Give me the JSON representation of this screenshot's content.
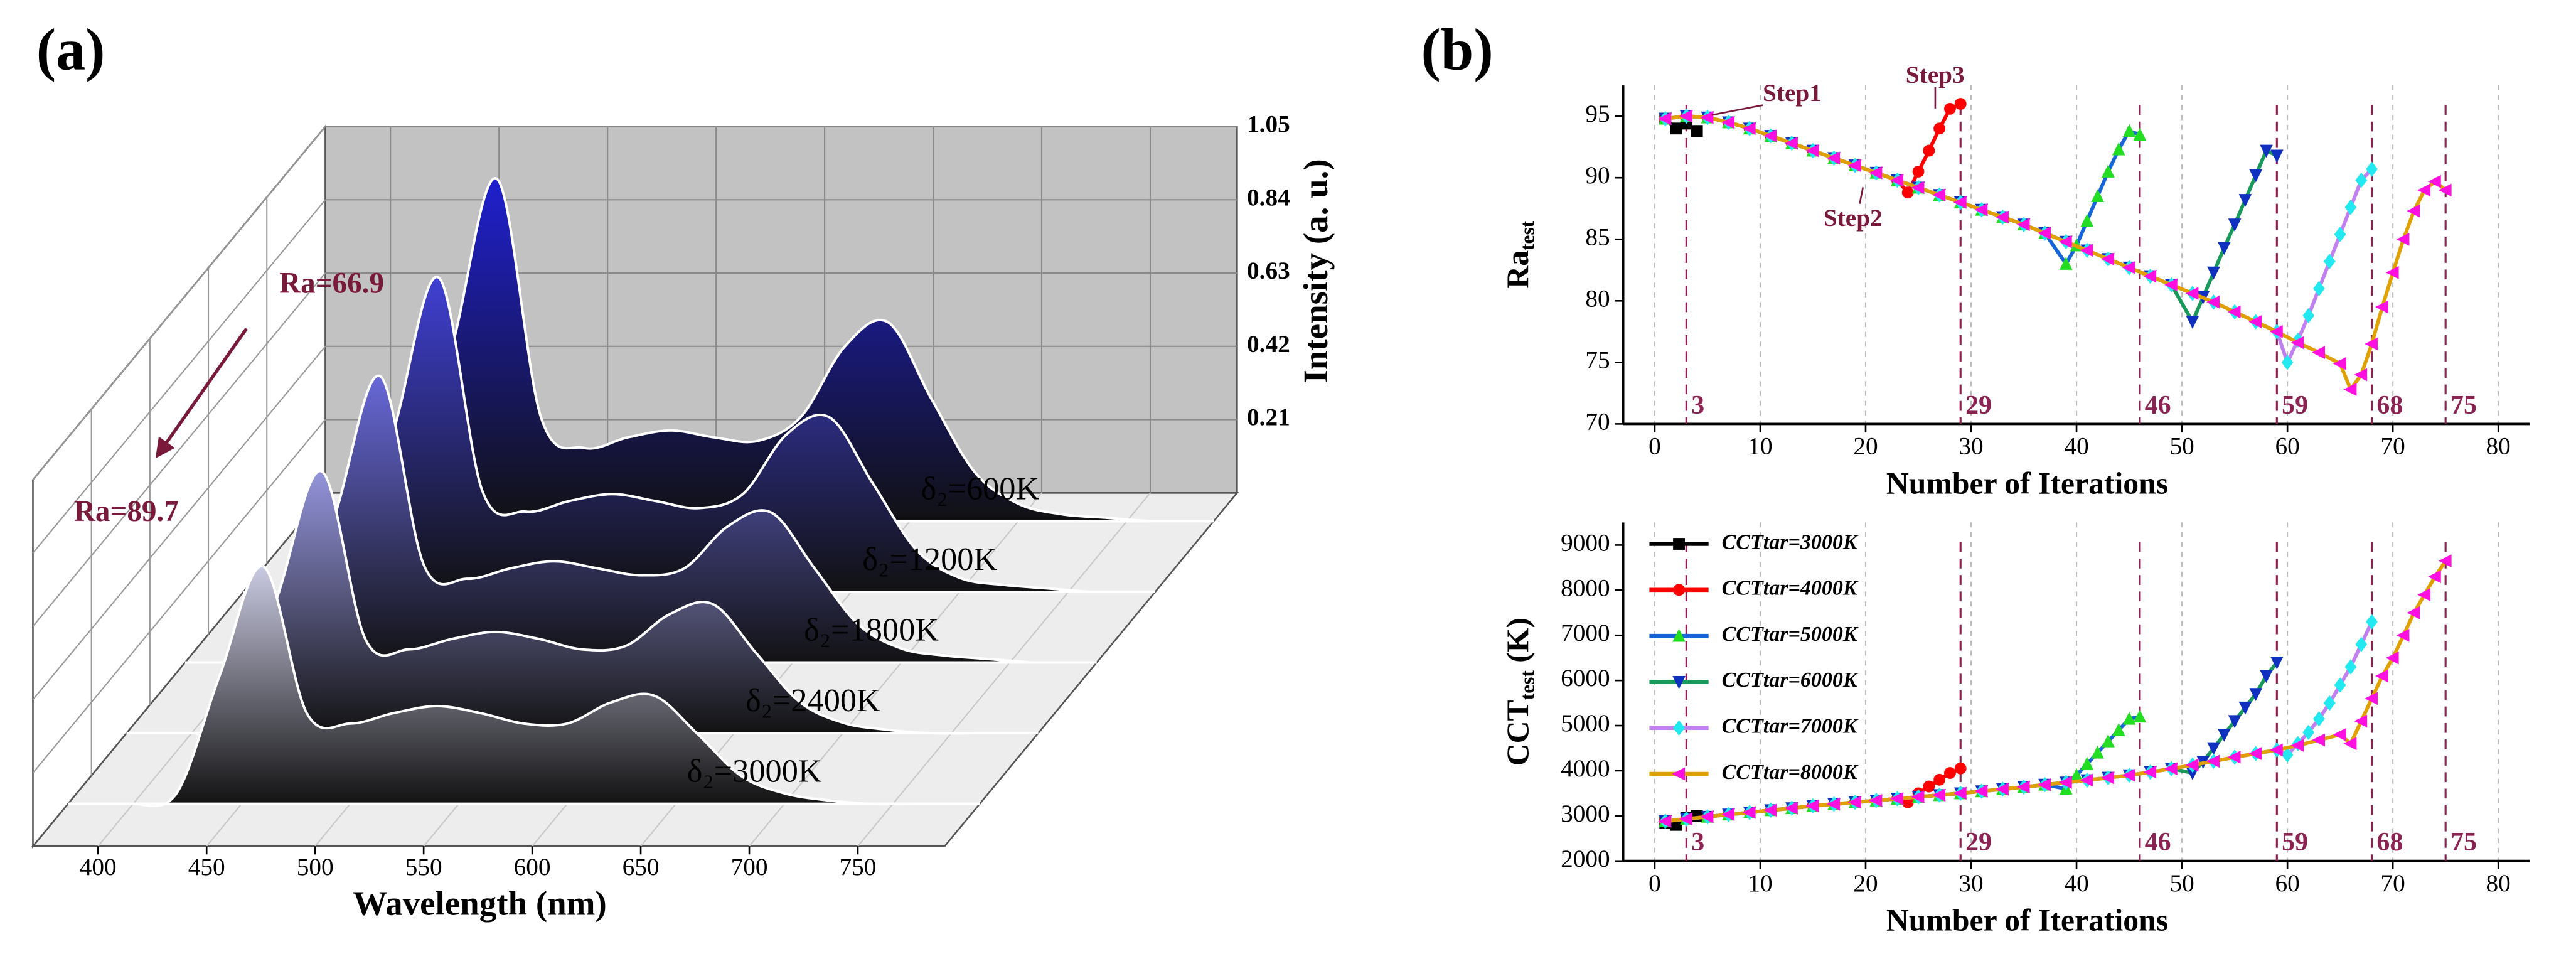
{
  "chart_data": [
    {
      "type": "waterfall",
      "title": "(a)",
      "xlabel": "Wavelength (nm)",
      "ylabel": "Intensity (a. u.)",
      "annotations": [
        "Ra=66.9",
        "Ra=89.7"
      ],
      "x": [
        400,
        420,
        440,
        460,
        480,
        500,
        520,
        540,
        560,
        580,
        600,
        620,
        640,
        660,
        680,
        700,
        720,
        740,
        760
      ],
      "xlim": [
        370,
        790
      ],
      "xticks": [
        400,
        450,
        500,
        550,
        600,
        650,
        700,
        750
      ],
      "ylim": [
        0,
        1.05
      ],
      "yticks": [
        0.21,
        0.42,
        0.63,
        0.84,
        1.05
      ],
      "series": [
        {
          "name": "δ₂=600K",
          "color": "#2020d0",
          "values": [
            0,
            0.04,
            0.52,
            0.98,
            0.3,
            0.21,
            0.24,
            0.26,
            0.24,
            0.23,
            0.3,
            0.5,
            0.57,
            0.35,
            0.14,
            0.05,
            0.02,
            0.01,
            0
          ]
        },
        {
          "name": "δ₂=1200K",
          "color": "#4040d4",
          "values": [
            0,
            0.04,
            0.48,
            0.9,
            0.29,
            0.23,
            0.26,
            0.28,
            0.26,
            0.24,
            0.28,
            0.45,
            0.5,
            0.31,
            0.12,
            0.04,
            0.02,
            0.01,
            0
          ]
        },
        {
          "name": "δ₂=1800K",
          "color": "#6868d8",
          "values": [
            0,
            0.03,
            0.44,
            0.82,
            0.28,
            0.24,
            0.27,
            0.29,
            0.27,
            0.25,
            0.27,
            0.39,
            0.43,
            0.27,
            0.11,
            0.04,
            0.02,
            0.01,
            0
          ]
        },
        {
          "name": "δ₂=2400K",
          "color": "#9494dc",
          "values": [
            0,
            0.03,
            0.4,
            0.75,
            0.27,
            0.24,
            0.27,
            0.29,
            0.27,
            0.24,
            0.25,
            0.34,
            0.37,
            0.23,
            0.09,
            0.03,
            0.01,
            0,
            0
          ]
        },
        {
          "name": "δ₂=3000K",
          "color": "#cacae2",
          "values": [
            0,
            0.03,
            0.37,
            0.68,
            0.26,
            0.23,
            0.26,
            0.28,
            0.26,
            0.23,
            0.23,
            0.29,
            0.31,
            0.2,
            0.08,
            0.03,
            0.01,
            0,
            0
          ]
        }
      ]
    },
    {
      "type": "line",
      "title": "(b)",
      "xlabel": "Number of Iterations",
      "ylabel": {
        "text": "Ra",
        "subscript": "test"
      },
      "annotations": [
        "Step1",
        "Step2",
        "Step3"
      ],
      "xlim": [
        -3,
        83
      ],
      "xticks": [
        0,
        10,
        20,
        30,
        40,
        50,
        60,
        70,
        80
      ],
      "ylim": [
        70,
        97.5
      ],
      "yticks": [
        70,
        75,
        80,
        85,
        90,
        95
      ],
      "grid": "x",
      "vlines": [
        3,
        29,
        46,
        59,
        68,
        75
      ],
      "series": [
        {
          "name": "CCTtar=3000K",
          "color": "#000000",
          "marker": "square",
          "marker_color": "#000000",
          "x": [
            1,
            2,
            3,
            4
          ],
          "values": [
            94.8,
            94.0,
            94.4,
            93.8
          ]
        },
        {
          "name": "CCTtar=4000K",
          "color": "#ff0000",
          "marker": "circle",
          "marker_color": "#ff0000",
          "x": [
            1,
            3,
            5,
            7,
            9,
            11,
            13,
            15,
            17,
            19,
            21,
            23,
            24,
            25,
            26,
            27,
            28,
            29
          ],
          "values": [
            94.8,
            95.0,
            94.9,
            94.5,
            94.0,
            93.4,
            92.8,
            92.2,
            91.6,
            91.0,
            90.4,
            89.8,
            88.8,
            90.5,
            92.2,
            94.0,
            95.6,
            96.0
          ]
        },
        {
          "name": "CCTtar=5000K",
          "color": "#1565d8",
          "marker": "triangle-up",
          "marker_color": "#22dd22",
          "x": [
            1,
            3,
            5,
            7,
            9,
            11,
            13,
            15,
            17,
            19,
            21,
            23,
            25,
            27,
            29,
            31,
            33,
            35,
            37,
            39,
            40,
            41,
            42,
            43,
            44,
            45,
            46
          ],
          "values": [
            94.8,
            95.0,
            94.9,
            94.5,
            94.0,
            93.4,
            92.8,
            92.2,
            91.6,
            91.0,
            90.4,
            89.8,
            89.2,
            88.6,
            88.0,
            87.4,
            86.8,
            86.2,
            85.5,
            83.0,
            84.5,
            86.5,
            88.5,
            90.5,
            92.3,
            93.8,
            93.5
          ]
        },
        {
          "name": "CCTtar=6000K",
          "color": "#1a9a5a",
          "marker": "triangle-down",
          "marker_color": "#1030c0",
          "x": [
            1,
            3,
            5,
            7,
            9,
            11,
            13,
            15,
            17,
            19,
            21,
            23,
            25,
            27,
            29,
            31,
            33,
            35,
            37,
            39,
            41,
            43,
            45,
            47,
            49,
            51,
            52,
            53,
            54,
            55,
            56,
            57,
            58,
            59
          ],
          "values": [
            94.8,
            95.0,
            94.9,
            94.5,
            94.0,
            93.4,
            92.8,
            92.2,
            91.6,
            91.0,
            90.4,
            89.8,
            89.2,
            88.6,
            88.0,
            87.4,
            86.8,
            86.2,
            85.5,
            84.8,
            84.1,
            83.4,
            82.7,
            82.0,
            81.3,
            78.3,
            80.3,
            82.3,
            84.3,
            86.2,
            88.2,
            90.2,
            92.2,
            91.8
          ]
        },
        {
          "name": "CCTtar=7000K",
          "color": "#c080f0",
          "marker": "diamond",
          "marker_color": "#22e8f0",
          "x": [
            1,
            3,
            5,
            7,
            9,
            11,
            13,
            15,
            17,
            19,
            21,
            23,
            25,
            27,
            29,
            31,
            33,
            35,
            37,
            39,
            41,
            43,
            45,
            47,
            49,
            51,
            53,
            55,
            57,
            59,
            60,
            61,
            62,
            63,
            64,
            65,
            66,
            67,
            68
          ],
          "values": [
            94.8,
            95.0,
            94.9,
            94.5,
            94.0,
            93.4,
            92.8,
            92.2,
            91.6,
            91.0,
            90.4,
            89.8,
            89.2,
            88.6,
            88.0,
            87.4,
            86.8,
            86.2,
            85.5,
            84.8,
            84.1,
            83.4,
            82.7,
            82.0,
            81.3,
            80.6,
            79.9,
            79.1,
            78.3,
            77.5,
            75.0,
            76.8,
            78.8,
            81.0,
            83.2,
            85.4,
            87.6,
            89.8,
            90.7
          ]
        },
        {
          "name": "CCTtar=8000K",
          "color": "#e0a000",
          "marker": "triangle-left",
          "marker_color": "#ff10e0",
          "x": [
            1,
            3,
            5,
            7,
            9,
            11,
            13,
            15,
            17,
            19,
            21,
            23,
            25,
            27,
            29,
            31,
            33,
            35,
            37,
            39,
            41,
            43,
            45,
            47,
            49,
            51,
            53,
            55,
            57,
            59,
            61,
            63,
            65,
            66,
            67,
            68,
            69,
            70,
            71,
            72,
            73,
            74,
            75
          ],
          "values": [
            94.8,
            95.0,
            94.9,
            94.5,
            94.0,
            93.4,
            92.8,
            92.2,
            91.6,
            91.0,
            90.4,
            89.8,
            89.2,
            88.6,
            88.0,
            87.4,
            86.8,
            86.2,
            85.5,
            84.8,
            84.1,
            83.4,
            82.7,
            82.0,
            81.3,
            80.6,
            79.9,
            79.1,
            78.3,
            77.5,
            76.6,
            75.8,
            74.9,
            72.8,
            74.0,
            76.5,
            79.5,
            82.3,
            85.0,
            87.3,
            89.0,
            89.7,
            89.0
          ]
        }
      ]
    },
    {
      "type": "line",
      "xlabel": "Number of Iterations",
      "ylabel": {
        "text": "CCT",
        "subscript": "test",
        "suffix": " (K)"
      },
      "xlim": [
        -3,
        83
      ],
      "xticks": [
        0,
        10,
        20,
        30,
        40,
        50,
        60,
        70,
        80
      ],
      "ylim": [
        2000,
        9500
      ],
      "yticks": [
        2000,
        3000,
        4000,
        5000,
        6000,
        7000,
        8000,
        9000
      ],
      "grid": "x",
      "vlines": [
        3,
        29,
        46,
        59,
        68,
        75
      ],
      "legend": "upper left",
      "series": [
        {
          "name": "CCTtar=3000K",
          "color": "#000000",
          "marker": "square",
          "marker_color": "#000000",
          "x": [
            1,
            2,
            3,
            4
          ],
          "values": [
            2850,
            2800,
            2950,
            3000
          ]
        },
        {
          "name": "CCTtar=4000K",
          "color": "#ff0000",
          "marker": "circle",
          "marker_color": "#ff0000",
          "x": [
            1,
            3,
            5,
            7,
            9,
            11,
            13,
            15,
            17,
            19,
            21,
            23,
            24,
            25,
            26,
            27,
            28,
            29
          ],
          "values": [
            2880,
            2930,
            2980,
            3030,
            3075,
            3125,
            3170,
            3220,
            3260,
            3300,
            3340,
            3380,
            3300,
            3500,
            3650,
            3800,
            3950,
            4050
          ]
        },
        {
          "name": "CCTtar=5000K",
          "color": "#1565d8",
          "marker": "triangle-up",
          "marker_color": "#22dd22",
          "x": [
            1,
            3,
            5,
            7,
            9,
            11,
            13,
            15,
            17,
            19,
            21,
            23,
            25,
            27,
            29,
            31,
            33,
            35,
            37,
            39,
            40,
            41,
            42,
            43,
            44,
            45,
            46
          ],
          "values": [
            2880,
            2930,
            2980,
            3030,
            3075,
            3125,
            3170,
            3220,
            3260,
            3300,
            3340,
            3380,
            3420,
            3460,
            3500,
            3545,
            3590,
            3640,
            3690,
            3600,
            3900,
            4150,
            4400,
            4650,
            4900,
            5150,
            5200
          ]
        },
        {
          "name": "CCTtar=6000K",
          "color": "#1a9a5a",
          "marker": "triangle-down",
          "marker_color": "#1030c0",
          "x": [
            1,
            3,
            5,
            7,
            9,
            11,
            13,
            15,
            17,
            19,
            21,
            23,
            25,
            27,
            29,
            31,
            33,
            35,
            37,
            39,
            41,
            43,
            45,
            47,
            49,
            51,
            52,
            53,
            54,
            55,
            56,
            57,
            58,
            59
          ],
          "values": [
            2880,
            2930,
            2980,
            3030,
            3075,
            3125,
            3170,
            3220,
            3260,
            3300,
            3340,
            3380,
            3420,
            3460,
            3500,
            3545,
            3590,
            3640,
            3690,
            3740,
            3790,
            3845,
            3900,
            3970,
            4045,
            3950,
            4200,
            4500,
            4800,
            5100,
            5400,
            5700,
            6100,
            6400
          ]
        },
        {
          "name": "CCTtar=7000K",
          "color": "#c080f0",
          "marker": "diamond",
          "marker_color": "#22e8f0",
          "x": [
            1,
            3,
            5,
            7,
            9,
            11,
            13,
            15,
            17,
            19,
            21,
            23,
            25,
            27,
            29,
            31,
            33,
            35,
            37,
            39,
            41,
            43,
            45,
            47,
            49,
            51,
            53,
            55,
            57,
            59,
            60,
            61,
            62,
            63,
            64,
            65,
            66,
            67,
            68
          ],
          "values": [
            2880,
            2930,
            2980,
            3030,
            3075,
            3125,
            3170,
            3220,
            3260,
            3300,
            3340,
            3380,
            3420,
            3460,
            3500,
            3545,
            3590,
            3640,
            3690,
            3740,
            3790,
            3845,
            3900,
            3970,
            4045,
            4125,
            4210,
            4300,
            4380,
            4460,
            4350,
            4600,
            4850,
            5150,
            5500,
            5900,
            6300,
            6800,
            7300
          ]
        },
        {
          "name": "CCTtar=8000K",
          "color": "#e0a000",
          "marker": "triangle-left",
          "marker_color": "#ff10e0",
          "x": [
            1,
            3,
            5,
            7,
            9,
            11,
            13,
            15,
            17,
            19,
            21,
            23,
            25,
            27,
            29,
            31,
            33,
            35,
            37,
            39,
            41,
            43,
            45,
            47,
            49,
            51,
            53,
            55,
            57,
            59,
            61,
            63,
            65,
            66,
            67,
            68,
            69,
            70,
            71,
            72,
            73,
            74,
            75
          ],
          "values": [
            2880,
            2930,
            2980,
            3030,
            3075,
            3125,
            3170,
            3220,
            3260,
            3300,
            3340,
            3380,
            3420,
            3460,
            3500,
            3545,
            3590,
            3640,
            3690,
            3740,
            3790,
            3845,
            3900,
            3970,
            4045,
            4125,
            4210,
            4300,
            4380,
            4460,
            4560,
            4680,
            4800,
            4600,
            5100,
            5600,
            6100,
            6500,
            7000,
            7500,
            7900,
            8300,
            8650
          ]
        }
      ]
    }
  ]
}
